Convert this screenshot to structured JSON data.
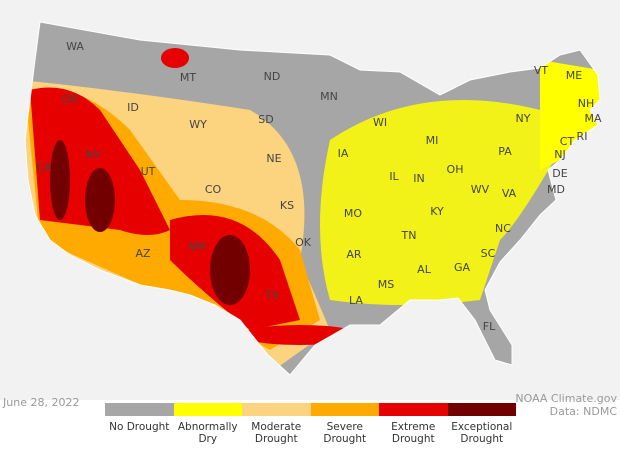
{
  "map": {
    "states": [
      "WA",
      "OR",
      "CA",
      "NV",
      "ID",
      "MT",
      "WY",
      "UT",
      "AZ",
      "CO",
      "NM",
      "ND",
      "SD",
      "NE",
      "KS",
      "OK",
      "TX",
      "MN",
      "IA",
      "MO",
      "AR",
      "LA",
      "WI",
      "IL",
      "MS",
      "MI",
      "IN",
      "TN",
      "AL",
      "KY",
      "OH",
      "GA",
      "FL",
      "WV",
      "VA",
      "NC",
      "SC",
      "PA",
      "NY",
      "VT",
      "ME",
      "NH",
      "MA",
      "CT",
      "RI",
      "NJ",
      "DE",
      "MD"
    ],
    "date": "June 28, 2022",
    "credit": "NOAA Climate.gov",
    "source": "Data: NDMC",
    "legend": [
      {
        "label": "No Drought",
        "color": "#a6a6a6"
      },
      {
        "label": "Abnormally Dry",
        "color": "#ffff00"
      },
      {
        "label": "Moderate Drought",
        "color": "#fcd37f"
      },
      {
        "label": "Severe Drought",
        "color": "#ffaa00"
      },
      {
        "label": "Extreme Drought",
        "color": "#e60000"
      },
      {
        "label": "Exceptional Drought",
        "color": "#730000"
      }
    ]
  }
}
